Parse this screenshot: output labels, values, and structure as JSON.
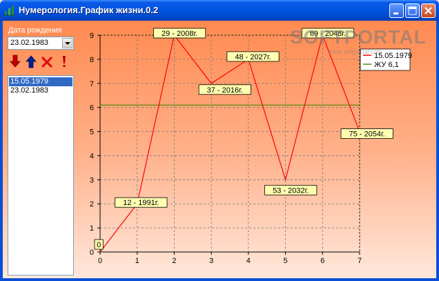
{
  "window": {
    "title": "Нумерология.График жизни.0.2"
  },
  "sidebar": {
    "date_label": "Дата рождения",
    "date_value": "23.02.1983",
    "icons": [
      "arrow-down-icon",
      "arrow-up-icon",
      "delete-x-icon",
      "exclamation-icon"
    ],
    "list": [
      {
        "label": "15.05.1979",
        "selected": true
      },
      {
        "label": "23.02.1983",
        "selected": false
      }
    ]
  },
  "watermark": {
    "text": "SOFTPORTAL",
    "url": "www.softportal.com"
  },
  "chart_data": {
    "type": "line",
    "xlim": [
      0,
      7
    ],
    "ylim": [
      0,
      9
    ],
    "x_ticks": [
      "0",
      "1",
      "2",
      "3",
      "4",
      "5",
      "6",
      "7"
    ],
    "y_ticks": [
      "0",
      "1",
      "2",
      "3",
      "4",
      "5",
      "6",
      "7",
      "8",
      "9"
    ],
    "grid": true,
    "legend_position": "top-right",
    "series": [
      {
        "name": "15.05.1979",
        "color": "#ff0000",
        "points": [
          {
            "x": 0,
            "y": 0,
            "label": "0"
          },
          {
            "x": 1,
            "y": 2,
            "label": "12 - 1991г."
          },
          {
            "x": 2,
            "y": 9,
            "label": "29 - 2008г."
          },
          {
            "x": 3,
            "y": 7,
            "label": "37 - 2016г."
          },
          {
            "x": 4,
            "y": 8,
            "label": "48 - 2027г."
          },
          {
            "x": 5,
            "y": 3,
            "label": "53 - 2032г."
          },
          {
            "x": 6,
            "y": 9,
            "label": "69 - 2048г."
          },
          {
            "x": 7,
            "y": 5,
            "label": "75 - 2054г."
          }
        ]
      },
      {
        "name": "ЖУ 6,1",
        "color": "#4a8a00",
        "value": 6.1
      }
    ]
  }
}
